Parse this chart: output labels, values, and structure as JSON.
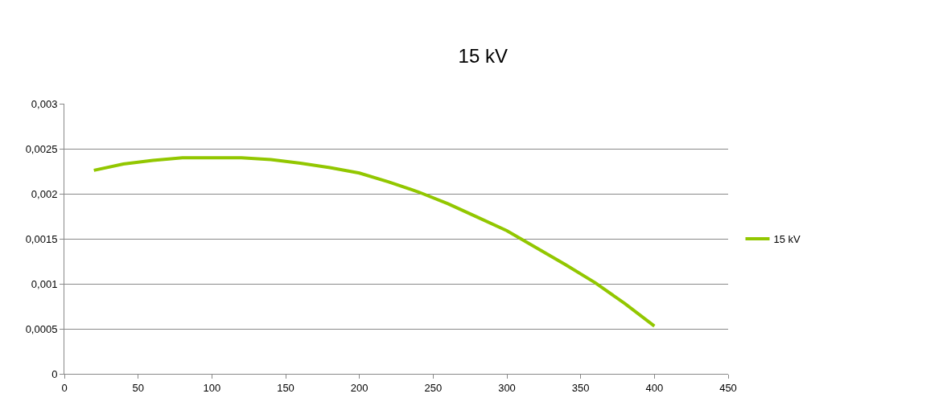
{
  "chart_data": {
    "type": "line",
    "title": "15 kV",
    "x": [
      20,
      40,
      60,
      80,
      100,
      120,
      140,
      160,
      180,
      200,
      220,
      240,
      260,
      280,
      300,
      320,
      340,
      360,
      380,
      400
    ],
    "series": [
      {
        "name": "15 kV",
        "color": "#92c700",
        "values": [
          0.00226,
          0.00233,
          0.00237,
          0.0024,
          0.0024,
          0.0024,
          0.00238,
          0.00234,
          0.00229,
          0.00223,
          0.00213,
          0.00202,
          0.00189,
          0.00174,
          0.00159,
          0.0014,
          0.00121,
          0.00101,
          0.00078,
          0.00053
        ]
      }
    ],
    "xlim": [
      0,
      450
    ],
    "xticks": [
      0,
      50,
      100,
      150,
      200,
      250,
      300,
      350,
      400,
      450
    ],
    "ylim": [
      0,
      0.003
    ],
    "yticks": [
      0,
      {
        "value": 0.0005,
        "label": "0,0005"
      },
      {
        "value": 0.001,
        "label": "0,001"
      },
      {
        "value": 0.0015,
        "label": "0,0015"
      },
      {
        "value": 0.002,
        "label": "0,002"
      },
      {
        "value": 0.0025,
        "label": "0,0025"
      },
      {
        "value": 0.003,
        "label": "0,003"
      }
    ],
    "grid": "y",
    "legend": "right",
    "marker": "none",
    "line_style": "solid"
  }
}
